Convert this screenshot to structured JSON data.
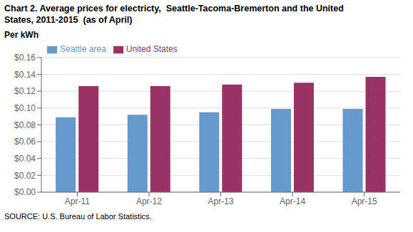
{
  "chart_data": {
    "type": "bar",
    "title": "Chart 2. Average prices for electricty,  Seattle-Tacoma-Bremerton and the United\nStates, 2011-2015  (as of April)",
    "ylabel": "Per kWh",
    "source": "SOURCE: U.S. Bureau of Labor Statistics.",
    "categories": [
      "Apr-11",
      "Apr-12",
      "Apr-13",
      "Apr-14",
      "Apr-15"
    ],
    "series": [
      {
        "name": "Seattle area",
        "color": "#6699CC",
        "values": [
          0.089,
          0.092,
          0.095,
          0.099,
          0.099
        ]
      },
      {
        "name": "United States",
        "color": "#993366",
        "values": [
          0.126,
          0.126,
          0.128,
          0.13,
          0.137
        ]
      }
    ],
    "ylim": [
      0,
      0.16
    ],
    "yticks": [
      {
        "value": 0.0,
        "label": "$0.00"
      },
      {
        "value": 0.02,
        "label": "$0.02"
      },
      {
        "value": 0.04,
        "label": "$0.04"
      },
      {
        "value": 0.06,
        "label": "$0.06"
      },
      {
        "value": 0.08,
        "label": "$0.08"
      },
      {
        "value": 0.1,
        "label": "$0.10"
      },
      {
        "value": 0.12,
        "label": "$0.12"
      },
      {
        "value": 0.14,
        "label": "$0.14"
      },
      {
        "value": 0.16,
        "label": "$0.16"
      }
    ],
    "grid": true,
    "legend": "upper left"
  }
}
